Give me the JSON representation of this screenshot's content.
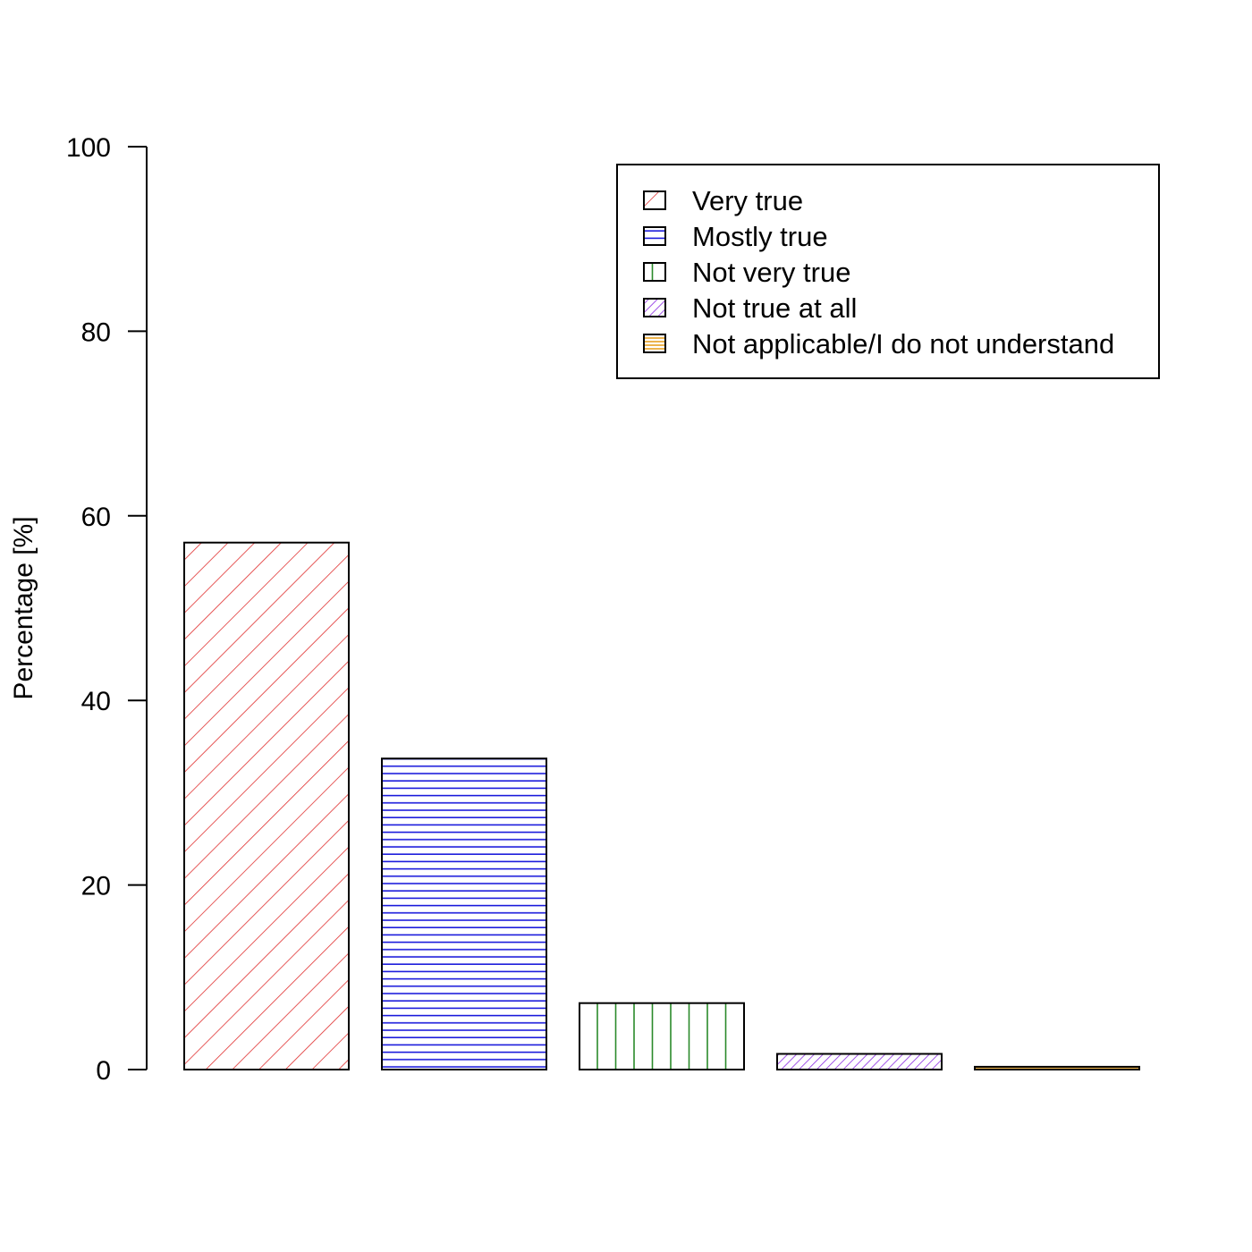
{
  "chart_data": {
    "type": "bar",
    "title": "",
    "xlabel": "",
    "ylabel": "Percentage [%]",
    "ylim": [
      0,
      100
    ],
    "yticks": [
      0,
      20,
      40,
      60,
      80,
      100
    ],
    "grid": false,
    "legend_position": "top-right",
    "categories": [
      "Very true",
      "Mostly true",
      "Not very true",
      "Not true at all",
      "Not applicable/I do not understand"
    ],
    "values": [
      57.1,
      33.7,
      7.2,
      1.7,
      0.3
    ],
    "colors": [
      "#e03030",
      "#1a1adb",
      "#2a8a2a",
      "#8a2be2",
      "#e8a020"
    ],
    "hatch": [
      "diagonal",
      "horizontal",
      "vertical",
      "diagonal",
      "horizontal"
    ]
  }
}
